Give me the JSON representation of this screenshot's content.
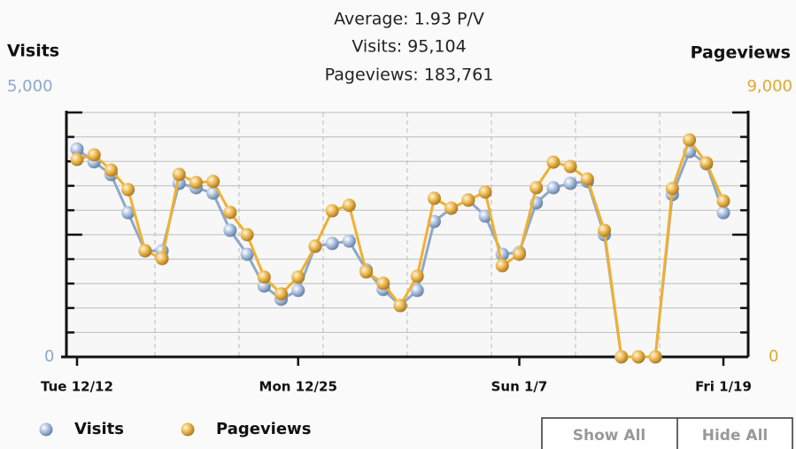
{
  "chart_data": {
    "type": "line",
    "header": [
      "Average: 1.93 P/V",
      "Visits: 95,104",
      "Pageviews: 183,761"
    ],
    "ylabel": "Visits",
    "y2label": "Pageviews",
    "categories": [
      "Tue 12/12",
      null,
      null,
      null,
      null,
      null,
      null,
      null,
      null,
      null,
      null,
      null,
      null,
      "Mon 12/25",
      null,
      null,
      null,
      null,
      null,
      null,
      null,
      null,
      null,
      null,
      null,
      null,
      "Sun 1/7",
      null,
      null,
      null,
      null,
      null,
      null,
      null,
      null,
      null,
      null,
      null,
      "Fri 1/19"
    ],
    "series": [
      {
        "name": "Visits",
        "color": "#8fa8c8",
        "axis": "y",
        "values": [
          4250,
          3990,
          3730,
          2950,
          2170,
          2170,
          3550,
          3460,
          3350,
          2590,
          2100,
          1450,
          1180,
          1360,
          2260,
          2320,
          2370,
          1780,
          1380,
          1050,
          1360,
          2770,
          3040,
          3210,
          2880,
          2100,
          2140,
          3150,
          3460,
          3550,
          3590,
          2500,
          0,
          0,
          0,
          3320,
          4200,
          3950,
          2950
        ]
      },
      {
        "name": "Pageviews",
        "color": "#f0b030",
        "axis": "y2",
        "values": [
          7270,
          7440,
          6880,
          6160,
          3910,
          3620,
          6720,
          6420,
          6460,
          5320,
          4500,
          2940,
          2320,
          2940,
          4080,
          5380,
          5580,
          3130,
          2710,
          1890,
          2970,
          5840,
          5480,
          5770,
          6070,
          3360,
          3780,
          6230,
          7170,
          7010,
          6550,
          4660,
          0,
          0,
          0,
          6200,
          7990,
          7140,
          5740
        ]
      }
    ],
    "ylim": [
      0,
      5000
    ],
    "yticks": [
      0,
      {
        "value": 5000,
        "label": "5,000"
      }
    ],
    "yminor_ticks": [
      500,
      1000,
      1500,
      2000,
      2500,
      3000,
      3500,
      4000,
      4500
    ],
    "y2lim": [
      0,
      9000
    ],
    "y2ticks": [
      0,
      {
        "value": 9000,
        "label": "9,000"
      }
    ],
    "y2minor_ticks": [
      900,
      1800,
      2700,
      3600,
      4500,
      5400,
      6300,
      7200,
      8100
    ],
    "grid": true,
    "buttons": [
      "Show All",
      "Hide All"
    ]
  }
}
